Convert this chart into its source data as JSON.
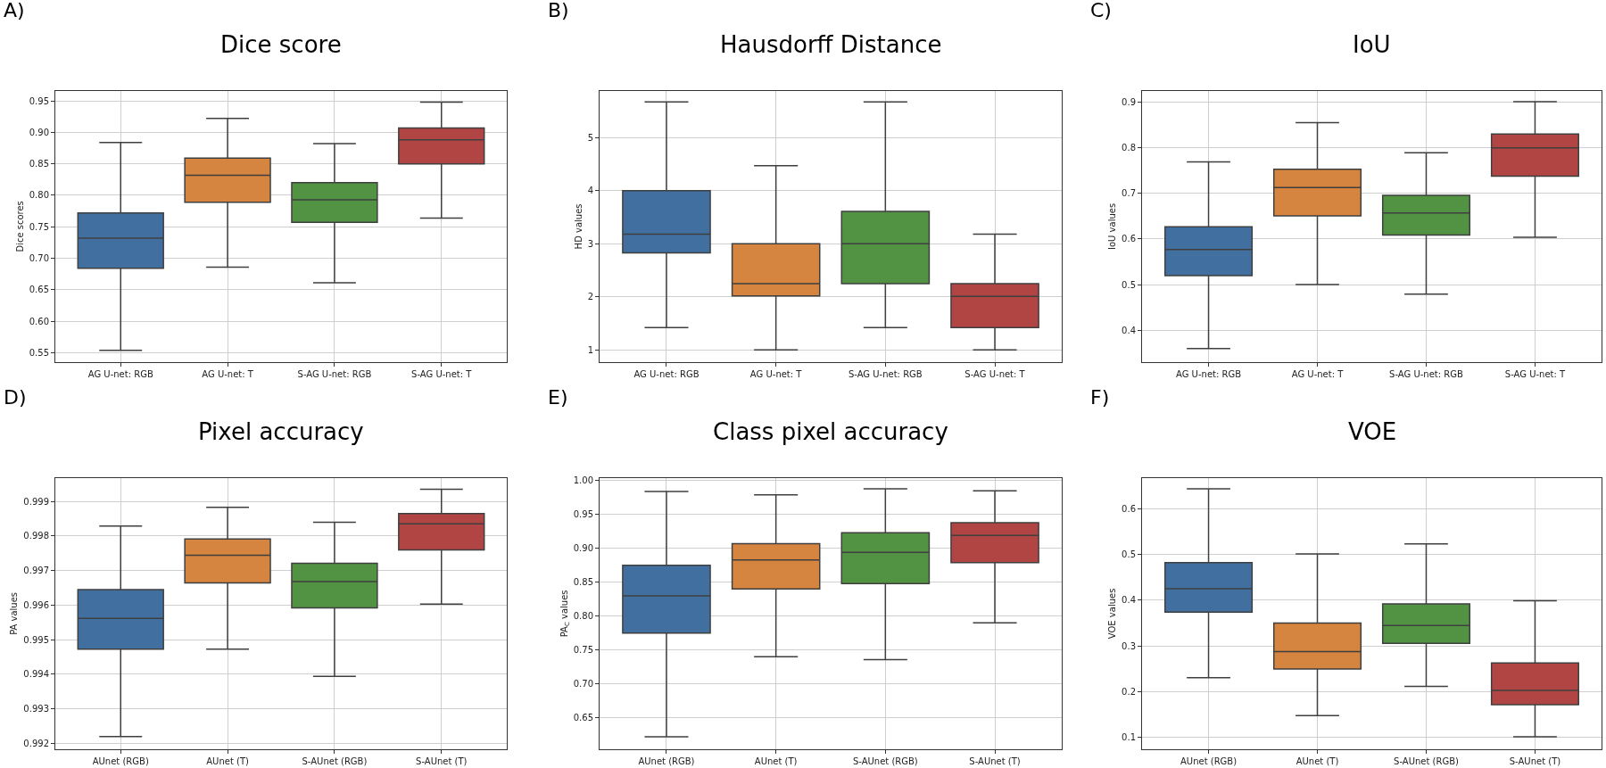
{
  "chart_data": [
    {
      "type": "box",
      "title": "Dice score",
      "annotations": [
        "A)"
      ],
      "ylabel": "Dice scores",
      "categories": [
        "AG U-net: RGB",
        "AG U-net: T",
        "S-AG U-net: RGB",
        "S-AG U-net: T"
      ],
      "colors": [
        "#4170a0",
        "#d68540",
        "#519243",
        "#b04544"
      ],
      "ylim": [
        0.535,
        0.966
      ],
      "yticks": [
        0.55,
        {
          "value": 0.6,
          "label": "0.60"
        },
        0.65,
        {
          "value": 0.7,
          "label": "0.70"
        },
        0.75,
        {
          "value": 0.8,
          "label": "0.80"
        },
        0.85,
        {
          "value": 0.9,
          "label": "0.90"
        },
        0.95
      ],
      "grid": true,
      "boxes": [
        {
          "low": 0.554,
          "q1": 0.684,
          "median": 0.732,
          "q3": 0.772,
          "high": 0.884
        },
        {
          "low": 0.686,
          "q1": 0.789,
          "median": 0.832,
          "q3": 0.859,
          "high": 0.922
        },
        {
          "low": 0.661,
          "q1": 0.757,
          "median": 0.793,
          "q3": 0.82,
          "high": 0.882
        },
        {
          "low": 0.764,
          "q1": 0.85,
          "median": 0.888,
          "q3": 0.907,
          "high": 0.948
        }
      ]
    },
    {
      "type": "box",
      "title": "Hausdorff Distance",
      "annotations": [
        "B)"
      ],
      "ylabel": "HD values",
      "categories": [
        "AG U-net: RGB",
        "AG U-net: T",
        "S-AG U-net: RGB",
        "S-AG U-net: T"
      ],
      "colors": [
        "#4170a0",
        "#d68540",
        "#519243",
        "#b04544"
      ],
      "ylim": [
        0.77,
        5.88
      ],
      "yticks": [
        1,
        2,
        3,
        4,
        5
      ],
      "grid": true,
      "boxes": [
        {
          "low": 1.42,
          "q1": 2.83,
          "median": 3.18,
          "q3": 4.0,
          "high": 5.67
        },
        {
          "low": 1.0,
          "q1": 2.02,
          "median": 2.25,
          "q3": 3.0,
          "high": 4.47
        },
        {
          "low": 1.42,
          "q1": 2.25,
          "median": 3.0,
          "q3": 3.61,
          "high": 5.67
        },
        {
          "low": 1.0,
          "q1": 1.42,
          "median": 2.01,
          "q3": 2.25,
          "high": 3.18
        }
      ]
    },
    {
      "type": "box",
      "title": "IoU",
      "annotations": [
        "C)"
      ],
      "ylabel": "IoU values",
      "categories": [
        "AG U-net: RGB",
        "AG U-net: T",
        "S-AG U-net: RGB",
        "S-AG U-net: T"
      ],
      "colors": [
        "#4170a0",
        "#d68540",
        "#519243",
        "#b04544"
      ],
      "ylim": [
        0.33,
        0.925
      ],
      "yticks": [
        0.4,
        0.5,
        0.6,
        0.7,
        0.8,
        0.9
      ],
      "grid": true,
      "boxes": [
        {
          "low": 0.36,
          "q1": 0.52,
          "median": 0.577,
          "q3": 0.627,
          "high": 0.769
        },
        {
          "low": 0.5,
          "q1": 0.651,
          "median": 0.713,
          "q3": 0.753,
          "high": 0.855
        },
        {
          "low": 0.479,
          "q1": 0.609,
          "median": 0.657,
          "q3": 0.696,
          "high": 0.789
        },
        {
          "low": 0.604,
          "q1": 0.738,
          "median": 0.8,
          "q3": 0.83,
          "high": 0.901
        }
      ]
    },
    {
      "type": "box",
      "title": "Pixel accuracy",
      "annotations": [
        "D)"
      ],
      "ylabel": "PA values",
      "categories": [
        "AUnet (RGB)",
        "AUnet (T)",
        "S-AUnet (RGB)",
        "S-AUnet (T)"
      ],
      "colors": [
        "#4170a0",
        "#d68540",
        "#519243",
        "#b04544"
      ],
      "ylim": [
        0.99183,
        0.99968
      ],
      "yticks": [
        0.992,
        0.993,
        0.994,
        0.995,
        0.996,
        0.997,
        0.998,
        0.999
      ],
      "grid": true,
      "boxes": [
        {
          "low": 0.9922,
          "q1": 0.99473,
          "median": 0.99562,
          "q3": 0.99645,
          "high": 0.99829
        },
        {
          "low": 0.99473,
          "q1": 0.99664,
          "median": 0.99744,
          "q3": 0.99791,
          "high": 0.99883
        },
        {
          "low": 0.99394,
          "q1": 0.99592,
          "median": 0.99668,
          "q3": 0.99721,
          "high": 0.9984
        },
        {
          "low": 0.99603,
          "q1": 0.9976,
          "median": 0.99835,
          "q3": 0.99865,
          "high": 0.99935
        }
      ]
    },
    {
      "type": "box",
      "title": "Class pixel accuracy",
      "annotations": [
        "E)"
      ],
      "ylabel": "PA$_{C}$ values",
      "categories": [
        "AUnet (RGB)",
        "AUnet (T)",
        "S-AUnet (RGB)",
        "S-AUnet (T)"
      ],
      "colors": [
        "#4170a0",
        "#d68540",
        "#519243",
        "#b04544"
      ],
      "ylim": [
        0.6035,
        1.004
      ],
      "yticks": [
        {
          "value": 0.65,
          "label": "0.65"
        },
        {
          "value": 0.7,
          "label": "0.70"
        },
        {
          "value": 0.75,
          "label": "0.75"
        },
        {
          "value": 0.8,
          "label": "0.80"
        },
        {
          "value": 0.85,
          "label": "0.85"
        },
        {
          "value": 0.9,
          "label": "0.90"
        },
        {
          "value": 0.95,
          "label": "0.95"
        },
        {
          "value": 1.0,
          "label": "1.00"
        }
      ],
      "grid": true,
      "boxes": [
        {
          "low": 0.622,
          "q1": 0.775,
          "median": 0.83,
          "q3": 0.875,
          "high": 0.984
        },
        {
          "low": 0.74,
          "q1": 0.84,
          "median": 0.883,
          "q3": 0.907,
          "high": 0.979
        },
        {
          "low": 0.736,
          "q1": 0.848,
          "median": 0.894,
          "q3": 0.923,
          "high": 0.988
        },
        {
          "low": 0.79,
          "q1": 0.879,
          "median": 0.919,
          "q3": 0.938,
          "high": 0.985
        }
      ]
    },
    {
      "type": "box",
      "title": "VOE",
      "annotations": [
        "F)"
      ],
      "ylabel": "VOE values",
      "categories": [
        "AUnet (RGB)",
        "AUnet (T)",
        "S-AUnet (RGB)",
        "S-AUnet (T)"
      ],
      "colors": [
        "#4170a0",
        "#d68540",
        "#519243",
        "#b04544"
      ],
      "ylim": [
        0.0745,
        0.667
      ],
      "yticks": [
        0.1,
        0.2,
        0.3,
        0.4,
        0.5,
        0.6
      ],
      "grid": true,
      "boxes": [
        {
          "low": 0.231,
          "q1": 0.374,
          "median": 0.425,
          "q3": 0.482,
          "high": 0.643
        },
        {
          "low": 0.148,
          "q1": 0.25,
          "median": 0.288,
          "q3": 0.35,
          "high": 0.501
        },
        {
          "low": 0.212,
          "q1": 0.306,
          "median": 0.345,
          "q3": 0.392,
          "high": 0.523
        },
        {
          "low": 0.102,
          "q1": 0.172,
          "median": 0.203,
          "q3": 0.263,
          "high": 0.399
        }
      ]
    }
  ]
}
